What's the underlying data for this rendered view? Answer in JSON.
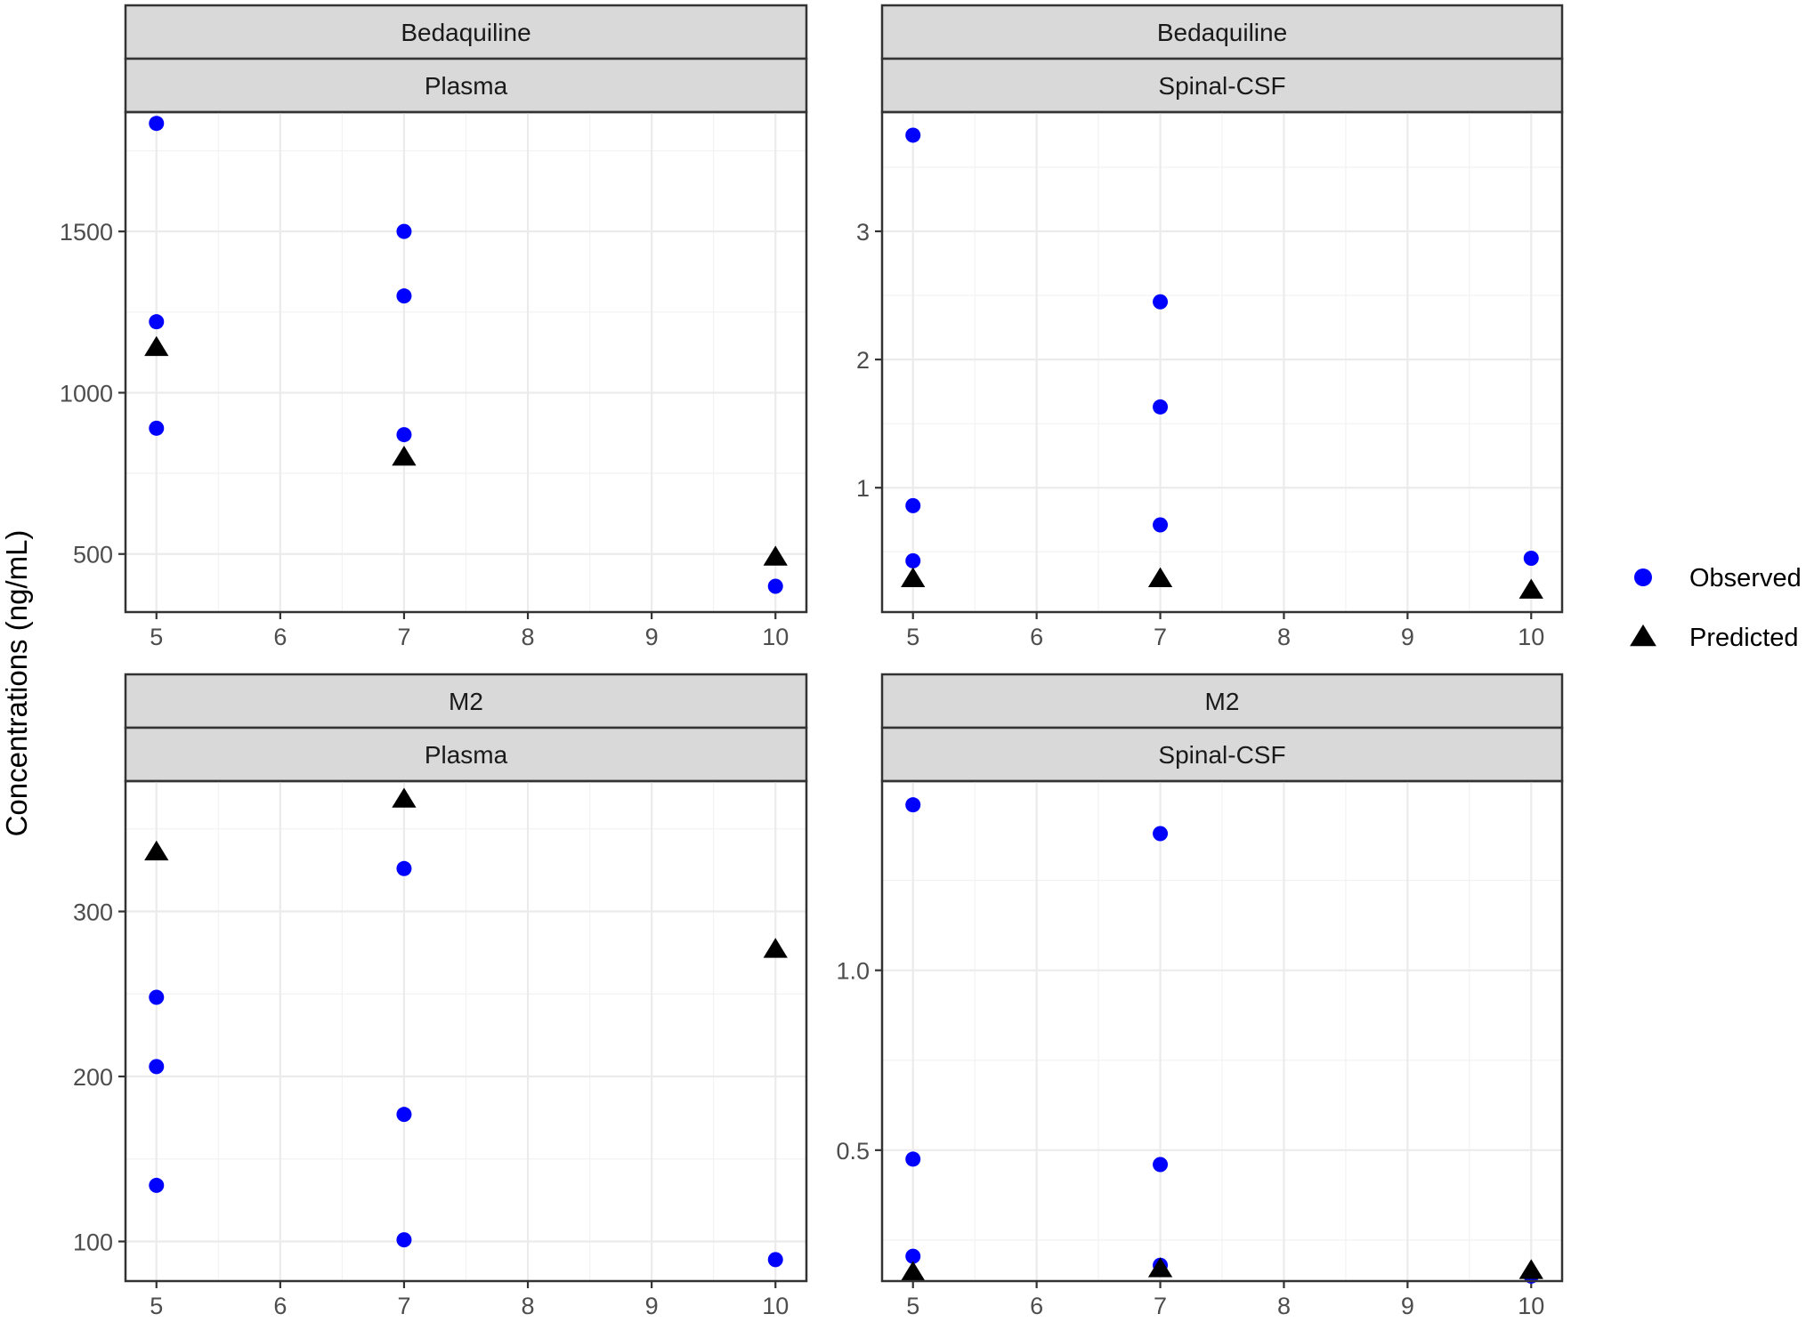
{
  "chart_data": [
    {
      "type": "scatter",
      "strip_top": "Bedaquiline",
      "strip_bottom": "Plasma",
      "xlim": [
        4.75,
        10.25
      ],
      "ylim": [
        320,
        1870
      ],
      "xticks": [
        5,
        6,
        7,
        8,
        9,
        10
      ],
      "yticks": [
        500,
        1000,
        1500
      ],
      "ytick_labels": [
        "500",
        "1000",
        "1500"
      ],
      "series": [
        {
          "name": "Observed",
          "points": [
            [
              5,
              1835
            ],
            [
              5,
              1220
            ],
            [
              5,
              890
            ],
            [
              7,
              1500
            ],
            [
              7,
              1300
            ],
            [
              7,
              870
            ],
            [
              10,
              400
            ]
          ]
        },
        {
          "name": "Predicted",
          "points": [
            [
              5,
              1140
            ],
            [
              7,
              800
            ],
            [
              10,
              490
            ]
          ]
        }
      ]
    },
    {
      "type": "scatter",
      "strip_top": "Bedaquiline",
      "strip_bottom": "Spinal-CSF",
      "xlim": [
        4.75,
        10.25
      ],
      "ylim": [
        0.03,
        3.93
      ],
      "xticks": [
        5,
        6,
        7,
        8,
        9,
        10
      ],
      "yticks": [
        1,
        2,
        3
      ],
      "ytick_labels": [
        "1",
        "2",
        "3"
      ],
      "series": [
        {
          "name": "Observed",
          "points": [
            [
              5,
              3.75
            ],
            [
              5,
              0.86
            ],
            [
              5,
              0.43
            ],
            [
              7,
              2.45
            ],
            [
              7,
              1.63
            ],
            [
              7,
              0.71
            ],
            [
              10,
              0.45
            ]
          ]
        },
        {
          "name": "Predicted",
          "points": [
            [
              5,
              0.29
            ],
            [
              7,
              0.29
            ],
            [
              10,
              0.2
            ]
          ]
        }
      ]
    },
    {
      "type": "scatter",
      "strip_top": "M2",
      "strip_bottom": "Plasma",
      "xlim": [
        4.75,
        10.25
      ],
      "ylim": [
        76,
        379
      ],
      "xticks": [
        5,
        6,
        7,
        8,
        9,
        10
      ],
      "yticks": [
        100,
        200,
        300
      ],
      "ytick_labels": [
        "100",
        "200",
        "300"
      ],
      "series": [
        {
          "name": "Observed",
          "points": [
            [
              5,
              248
            ],
            [
              5,
              206
            ],
            [
              5,
              134
            ],
            [
              7,
              326
            ],
            [
              7,
              177
            ],
            [
              7,
              101
            ],
            [
              10,
              89
            ]
          ]
        },
        {
          "name": "Predicted",
          "points": [
            [
              5,
              336
            ],
            [
              7,
              368
            ],
            [
              10,
              277
            ]
          ]
        }
      ]
    },
    {
      "type": "scatter",
      "strip_top": "M2",
      "strip_bottom": "Spinal-CSF",
      "xlim": [
        4.75,
        10.25
      ],
      "ylim": [
        0.136,
        1.526
      ],
      "xticks": [
        5,
        6,
        7,
        8,
        9,
        10
      ],
      "yticks": [
        0.5,
        1.0
      ],
      "ytick_labels": [
        "0.5",
        "1.0"
      ],
      "series": [
        {
          "name": "Observed",
          "points": [
            [
              5,
              1.46
            ],
            [
              5,
              0.475
            ],
            [
              5,
              0.205
            ],
            [
              7,
              1.38
            ],
            [
              7,
              0.46
            ],
            [
              7,
              0.18
            ],
            [
              10,
              0.15
            ]
          ]
        },
        {
          "name": "Predicted",
          "points": [
            [
              5,
              0.16
            ],
            [
              7,
              0.17
            ],
            [
              10,
              0.165
            ]
          ]
        }
      ]
    }
  ],
  "ylabel": "Concentrations (ng/mL)",
  "legend": {
    "placement": "right",
    "items": [
      {
        "label": "Observed",
        "shape": "circle",
        "color": "#0000ff"
      },
      {
        "label": "Predicted",
        "shape": "triangle",
        "color": "#000000"
      }
    ]
  }
}
